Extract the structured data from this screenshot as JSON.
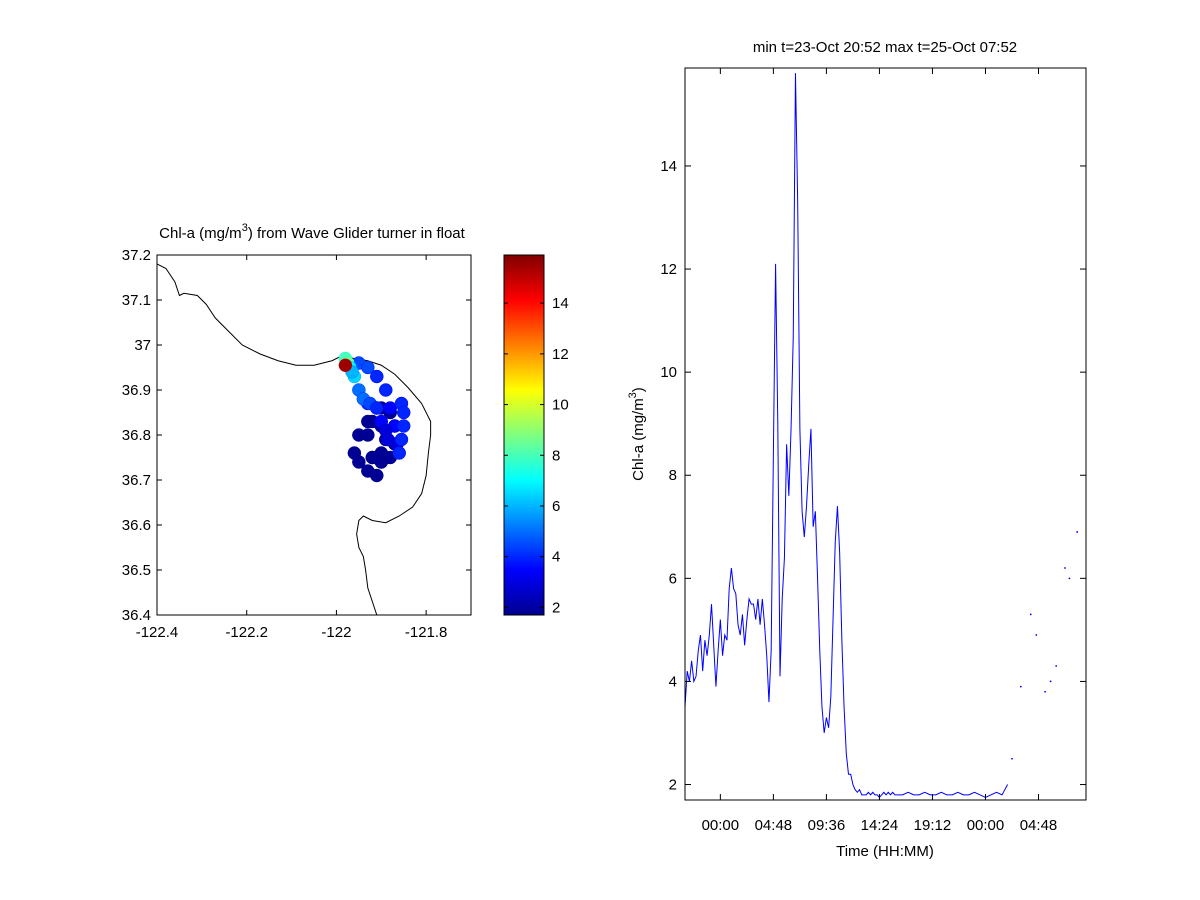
{
  "chart_data": [
    {
      "type": "scatter",
      "title": "Chl-a (mg/m3) from Wave Glider turner in float",
      "title_parts": {
        "pre": "Chl-a (mg/m",
        "sup": "3",
        "post": ") from Wave Glider turner in float"
      },
      "xlim": [
        -122.4,
        -121.7
      ],
      "ylim": [
        36.4,
        37.2
      ],
      "xticks": [
        -122.4,
        -122.2,
        -122,
        -121.8
      ],
      "xtick_labels": [
        "-122.4",
        "-122.2",
        "-122",
        "-121.8"
      ],
      "yticks": [
        36.4,
        36.5,
        36.6,
        36.7,
        36.8,
        36.9,
        37.0,
        37.1,
        37.2
      ],
      "ytick_labels": [
        "36.4",
        "36.5",
        "36.6",
        "36.7",
        "36.8",
        "36.9",
        "37",
        "37.1",
        "37.2"
      ],
      "grid": false,
      "coastline": [
        [
          -122.4,
          37.18
        ],
        [
          -122.38,
          37.17
        ],
        [
          -122.36,
          37.14
        ],
        [
          -122.35,
          37.11
        ],
        [
          -122.34,
          37.115
        ],
        [
          -122.31,
          37.11
        ],
        [
          -122.29,
          37.09
        ],
        [
          -122.27,
          37.06
        ],
        [
          -122.24,
          37.03
        ],
        [
          -122.21,
          37.0
        ],
        [
          -122.17,
          36.98
        ],
        [
          -122.13,
          36.965
        ],
        [
          -122.09,
          36.955
        ],
        [
          -122.05,
          36.955
        ],
        [
          -122.03,
          36.96
        ],
        [
          -122.01,
          36.965
        ],
        [
          -121.99,
          36.975
        ],
        [
          -121.96,
          36.97
        ],
        [
          -121.93,
          36.965
        ],
        [
          -121.9,
          36.955
        ],
        [
          -121.87,
          36.935
        ],
        [
          -121.84,
          36.905
        ],
        [
          -121.81,
          36.87
        ],
        [
          -121.79,
          36.83
        ],
        [
          -121.79,
          36.8
        ],
        [
          -121.795,
          36.76
        ],
        [
          -121.8,
          36.71
        ],
        [
          -121.81,
          36.67
        ],
        [
          -121.83,
          36.64
        ],
        [
          -121.86,
          36.62
        ],
        [
          -121.89,
          36.605
        ],
        [
          -121.92,
          36.61
        ],
        [
          -121.94,
          36.62
        ],
        [
          -121.95,
          36.61
        ],
        [
          -121.955,
          36.58
        ],
        [
          -121.95,
          36.55
        ],
        [
          -121.94,
          36.53
        ],
        [
          -121.935,
          36.5
        ],
        [
          -121.93,
          36.46
        ],
        [
          -121.92,
          36.43
        ],
        [
          -121.91,
          36.4
        ]
      ],
      "tracks": [
        {
          "lon": [
            -121.9,
            -121.88,
            -121.87,
            -121.87,
            -121.88,
            -121.9,
            -121.93,
            -121.95,
            -121.96,
            -121.95,
            -121.93,
            -121.91,
            -121.9
          ],
          "lat": [
            36.74,
            36.75,
            36.78,
            36.82,
            36.85,
            36.86,
            36.83,
            36.8,
            36.76,
            36.74,
            36.72,
            36.71,
            36.74
          ],
          "chl": [
            2,
            2,
            2,
            2,
            2,
            2,
            2,
            2,
            2,
            2,
            2,
            2,
            2
          ]
        },
        {
          "lon": [
            -121.92,
            -121.9,
            -121.89,
            -121.9,
            -121.92,
            -121.93,
            -121.92
          ],
          "lat": [
            36.75,
            36.76,
            36.79,
            36.82,
            36.83,
            36.8,
            36.75
          ],
          "chl": [
            2,
            2,
            2,
            2,
            2,
            2,
            2
          ]
        },
        {
          "lon": [
            -121.95,
            -121.93,
            -121.91,
            -121.89,
            -121.88,
            -121.87,
            -121.865
          ],
          "lat": [
            36.96,
            36.95,
            36.93,
            36.9,
            36.86,
            36.82,
            36.78
          ],
          "chl": [
            4.5,
            4.5,
            4,
            4,
            3.5,
            3.5,
            3
          ]
        },
        {
          "lon": [
            -121.93,
            -121.91,
            -121.9,
            -121.89,
            -121.885
          ],
          "lat": [
            36.87,
            36.86,
            36.83,
            36.81,
            36.79
          ],
          "chl": [
            4,
            3.5,
            3.5,
            3,
            3
          ]
        },
        {
          "lon": [
            -121.96,
            -121.95,
            -121.94,
            -121.925,
            -121.91
          ],
          "lat": [
            36.93,
            36.9,
            36.88,
            36.87,
            36.86
          ],
          "chl": [
            6.5,
            5,
            5,
            4.5,
            4
          ]
        },
        {
          "lon": [
            -121.855,
            -121.85,
            -121.85,
            -121.855,
            -121.86
          ],
          "lat": [
            36.87,
            36.85,
            36.82,
            36.79,
            36.76
          ],
          "chl": [
            4,
            4,
            4,
            4,
            4
          ]
        },
        {
          "lon": [
            -121.98,
            -121.975,
            -121.97,
            -121.965
          ],
          "lat": [
            36.97,
            36.96,
            36.95,
            36.94
          ],
          "chl": [
            8,
            8.5,
            7,
            6
          ]
        },
        {
          "lon": [
            -121.98
          ],
          "lat": [
            36.955
          ],
          "chl": [
            15.5
          ]
        }
      ],
      "colorbar": {
        "min": 1.7,
        "max": 15.9,
        "ticks": [
          2,
          4,
          6,
          8,
          10,
          12,
          14
        ],
        "tick_labels": [
          "2",
          "4",
          "6",
          "8",
          "10",
          "12",
          "14"
        ]
      }
    },
    {
      "type": "line",
      "title": "min t=23-Oct 20:52 max t=25-Oct 07:52",
      "xlabel": "Time (HH:MM)",
      "ylabel_parts": {
        "pre": "Chl-a (mg/m",
        "sup": "3",
        "post": ")"
      },
      "xlim": [
        -3.2,
        33.1
      ],
      "ylim": [
        1.7,
        15.9
      ],
      "xticks": [
        0,
        4.8,
        9.6,
        14.4,
        19.2,
        24,
        28.8
      ],
      "xtick_labels": [
        "00:00",
        "04:48",
        "09:36",
        "14:24",
        "19:12",
        "00:00",
        "04:48"
      ],
      "yticks": [
        2,
        4,
        6,
        8,
        10,
        12,
        14
      ],
      "ytick_labels": [
        "2",
        "4",
        "6",
        "8",
        "10",
        "12",
        "14"
      ],
      "grid": false,
      "series": [
        {
          "color": "#0000ff",
          "x": [
            -3.2,
            -3.0,
            -2.8,
            -2.6,
            -2.4,
            -2.2,
            -2.0,
            -1.8,
            -1.6,
            -1.4,
            -1.2,
            -1.0,
            -0.8,
            -0.6,
            -0.4,
            -0.2,
            0.0,
            0.2,
            0.4,
            0.6,
            0.8,
            1.0,
            1.2,
            1.4,
            1.6,
            1.8,
            2.0,
            2.2,
            2.4,
            2.6,
            2.8,
            3.0,
            3.2,
            3.4,
            3.6,
            3.8,
            4.0,
            4.2,
            4.4,
            4.6,
            4.8,
            5.0,
            5.2,
            5.4,
            5.6,
            5.8,
            6.0,
            6.2,
            6.4,
            6.6,
            6.8,
            7.0,
            7.2,
            7.4,
            7.6,
            7.8,
            8.0,
            8.2,
            8.4,
            8.6,
            8.8,
            9.0,
            9.2,
            9.4,
            9.6,
            9.8,
            10.0,
            10.2,
            10.4,
            10.6,
            10.8,
            11.0,
            11.2,
            11.4,
            11.6,
            11.8,
            12.0,
            12.2,
            12.4,
            12.6,
            12.8,
            13.0,
            13.2,
            13.4,
            13.6,
            13.8,
            14.0,
            14.2,
            14.4,
            14.6,
            14.8,
            15.0,
            15.2,
            15.4,
            15.6,
            15.8,
            16.0,
            16.5,
            17.0,
            17.5,
            18.0,
            18.5,
            19.0,
            19.5,
            20.0,
            20.5,
            21.0,
            21.5,
            22.0,
            22.5,
            23.0,
            23.5,
            24.0,
            24.5,
            25.0,
            25.5,
            26.0
          ],
          "y": [
            3.5,
            4.2,
            4.0,
            4.4,
            4.0,
            4.1,
            4.6,
            4.9,
            4.2,
            4.8,
            4.5,
            4.9,
            5.5,
            4.7,
            3.9,
            4.6,
            5.2,
            4.5,
            4.9,
            4.8,
            5.8,
            6.2,
            5.8,
            5.7,
            5.1,
            4.9,
            5.3,
            4.7,
            5.2,
            5.6,
            5.5,
            5.5,
            5.2,
            5.6,
            5.1,
            5.6,
            5.1,
            4.5,
            3.6,
            4.6,
            8.4,
            12.1,
            9.0,
            4.1,
            5.6,
            6.4,
            8.6,
            7.6,
            8.9,
            10.7,
            15.8,
            13.3,
            8.9,
            7.3,
            6.8,
            7.4,
            8.2,
            8.9,
            7.0,
            7.3,
            6.0,
            4.6,
            3.5,
            3.0,
            3.3,
            3.1,
            3.7,
            5.2,
            6.7,
            7.4,
            6.5,
            4.8,
            3.5,
            2.6,
            2.2,
            2.2,
            2.0,
            1.9,
            1.85,
            1.9,
            1.8,
            1.8,
            1.8,
            1.85,
            1.8,
            1.85,
            1.8,
            1.8,
            1.75,
            1.8,
            1.85,
            1.8,
            1.85,
            1.8,
            1.85,
            1.8,
            1.8,
            1.8,
            1.85,
            1.8,
            1.8,
            1.85,
            1.8,
            1.8,
            1.85,
            1.8,
            1.8,
            1.85,
            1.8,
            1.8,
            1.85,
            1.8,
            1.75,
            1.8,
            1.85,
            1.8,
            2.0
          ]
        },
        {
          "color": "#0000ff",
          "marker": "dot",
          "x": [
            26.4,
            27.2,
            28.1,
            28.6,
            29.4,
            29.9,
            30.4,
            31.2,
            31.6,
            32.3
          ],
          "y": [
            2.5,
            3.9,
            5.3,
            4.9,
            3.8,
            4.0,
            4.3,
            6.2,
            6.0,
            6.9
          ]
        }
      ]
    }
  ]
}
